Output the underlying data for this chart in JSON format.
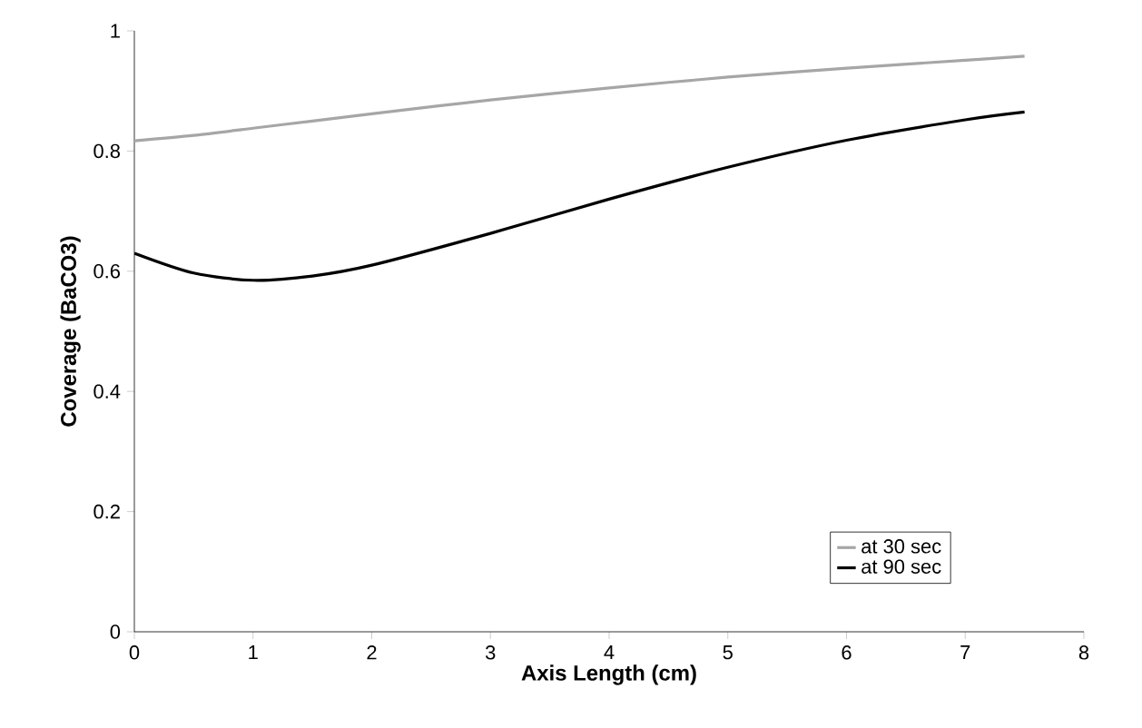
{
  "chart_data": {
    "type": "line",
    "xlabel": "Axis Length (cm)",
    "ylabel": "Coverage (BaCO3)",
    "xlim": [
      0,
      8
    ],
    "ylim": [
      0,
      1
    ],
    "xticks": [
      0,
      1,
      2,
      3,
      4,
      5,
      6,
      7,
      8
    ],
    "yticks": [
      0,
      0.2,
      0.4,
      0.6,
      0.8,
      1
    ],
    "x": [
      0,
      0.5,
      1,
      1.5,
      2,
      3,
      4,
      5,
      6,
      7,
      7.5
    ],
    "series": [
      {
        "name": "at 30 sec",
        "color": "#a6a6a6",
        "values": [
          0.817,
          0.826,
          0.838,
          0.85,
          0.862,
          0.885,
          0.905,
          0.923,
          0.938,
          0.951,
          0.958
        ]
      },
      {
        "name": "at 90 sec",
        "color": "#000000",
        "values": [
          0.63,
          0.597,
          0.585,
          0.592,
          0.61,
          0.663,
          0.72,
          0.773,
          0.818,
          0.852,
          0.865
        ]
      }
    ],
    "legend": "bottom right",
    "marker": "none",
    "line_style": "solid",
    "grid": false
  }
}
